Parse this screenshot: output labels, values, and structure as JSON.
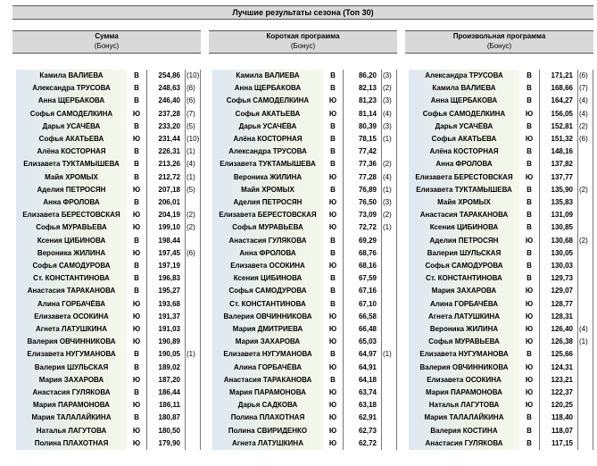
{
  "title": "Лучшие результаты сезона (Топ 30)",
  "tables": [
    {
      "header": "Сумма",
      "subheader": "(Бонус)",
      "rows": [
        [
          "Камила ВАЛИЕВА",
          "В",
          "254,86",
          "(10)"
        ],
        [
          "Александра ТРУСОВА",
          "В",
          "248,63",
          "(6)"
        ],
        [
          "Анна ЩЕРБАКОВА",
          "В",
          "246,40",
          "(6)"
        ],
        [
          "Софья САМОДЕЛКИНА",
          "Ю",
          "237,28",
          "(7)"
        ],
        [
          "Дарья УСАЧЁВА",
          "В",
          "233,20",
          "(5)"
        ],
        [
          "Софья АКАТЬЕВА",
          "Ю",
          "231,44",
          "(10)"
        ],
        [
          "Алёна КОСТОРНАЯ",
          "В",
          "226,31",
          "(1)"
        ],
        [
          "Елизавета ТУКТАМЫШЕВА",
          "В",
          "213,26",
          "(4)"
        ],
        [
          "Майя ХРОМЫХ",
          "В",
          "212,72",
          "(1)"
        ],
        [
          "Аделия ПЕТРОСЯН",
          "Ю",
          "207,18",
          "(5)"
        ],
        [
          "Анна ФРОЛОВА",
          "В",
          "206,01",
          null
        ],
        [
          "Елизавета БЕРЕСТОВСКАЯ",
          "Ю",
          "204,19",
          "(2)"
        ],
        [
          "Софья МУРАВЬЕВА",
          "Ю",
          "199,10",
          "(2)"
        ],
        [
          "Ксения ЦИБИНОВА",
          "В",
          "198,44",
          null
        ],
        [
          "Вероника ЖИЛИНА",
          "Ю",
          "197,45",
          "(6)"
        ],
        [
          "Софья САМОДУРОВА",
          "В",
          "197,19",
          null
        ],
        [
          "Ст. КОНСТАНТИНОВА",
          "В",
          "196,83",
          null
        ],
        [
          "Анастасия ТАРАКАНОВА",
          "В",
          "195,27",
          null
        ],
        [
          "Алина ГОРБАЧЁВА",
          "Ю",
          "193,68",
          null
        ],
        [
          "Елизавета ОСОКИНА",
          "Ю",
          "191,37",
          null
        ],
        [
          "Агнета ЛАТУШКИНА",
          "Ю",
          "191,03",
          null
        ],
        [
          "Валерия ОВЧИННИКОВА",
          "Ю",
          "190,89",
          null
        ],
        [
          "Елизавета НУГУМАНОВА",
          "В",
          "190,05",
          "(1)"
        ],
        [
          "Валерия ШУЛЬСКАЯ",
          "В",
          "189,02",
          null
        ],
        [
          "Мария ЗАХАРОВА",
          "Ю",
          "187,20",
          null
        ],
        [
          "Анастасия ГУЛЯКОВА",
          "В",
          "186,44",
          null
        ],
        [
          "Мария ПАРАМОНОВА",
          "Ю",
          "186,11",
          null
        ],
        [
          "Мария ТАЛАЛАЙКИНА",
          "В",
          "180,87",
          null
        ],
        [
          "Наталья ЛАГУТОВА",
          "Ю",
          "180,50",
          null
        ],
        [
          "Полина ПЛАХОТНАЯ",
          "Ю",
          "179,90",
          null
        ]
      ]
    },
    {
      "header": "Короткая программа",
      "subheader": "(Бонус)",
      "rows": [
        [
          "Камила ВАЛИЕВА",
          "В",
          "86,20",
          "(3)"
        ],
        [
          "Анна ЩЕРБАКОВА",
          "В",
          "82,13",
          "(2)"
        ],
        [
          "Софья САМОДЕЛКИНА",
          "Ю",
          "81,23",
          "(3)"
        ],
        [
          "Софья АКАТЬЕВА",
          "Ю",
          "81,14",
          "(4)"
        ],
        [
          "Дарья УСАЧЁВА",
          "В",
          "80,39",
          "(3)"
        ],
        [
          "Алёна КОСТОРНАЯ",
          "В",
          "78,15",
          "(1)"
        ],
        [
          "Александра ТРУСОВА",
          "В",
          "77,42",
          null
        ],
        [
          "Елизавета ТУКТАМЫШЕВА",
          "В",
          "77,36",
          "(2)"
        ],
        [
          "Вероника ЖИЛИНА",
          "Ю",
          "77,28",
          "(4)"
        ],
        [
          "Майя ХРОМЫХ",
          "В",
          "76,89",
          "(1)"
        ],
        [
          "Аделия ПЕТРОСЯН",
          "Ю",
          "76,50",
          "(3)"
        ],
        [
          "Елизавета БЕРЕСТОВСКАЯ",
          "Ю",
          "73,09",
          "(2)"
        ],
        [
          "Софья МУРАВЬЕВА",
          "Ю",
          "72,72",
          "(1)"
        ],
        [
          "Анастасия ГУЛЯКОВА",
          "В",
          "69,29",
          null
        ],
        [
          "Анна ФРОЛОВА",
          "В",
          "68,76",
          null
        ],
        [
          "Елизавета ОСОКИНА",
          "Ю",
          "68,16",
          null
        ],
        [
          "Ксения ЦИБИНОВА",
          "В",
          "67,59",
          null
        ],
        [
          "Софья САМОДУРОВА",
          "В",
          "67,16",
          null
        ],
        [
          "Ст. КОНСТАНТИНОВА",
          "В",
          "67,10",
          null
        ],
        [
          "Валерия ОВЧИННИКОВА",
          "Ю",
          "66,58",
          null
        ],
        [
          "Мария ДМИТРИЕВА",
          "Ю",
          "66,48",
          null
        ],
        [
          "Мария ЗАХАРОВА",
          "Ю",
          "65,03",
          null
        ],
        [
          "Елизавета НУГУМАНОВА",
          "В",
          "64,97",
          "(1)"
        ],
        [
          "Алина ГОРБАЧЁВА",
          "Ю",
          "64,91",
          null
        ],
        [
          "Анастасия ТАРАКАНОВА",
          "В",
          "64,18",
          null
        ],
        [
          "Мария ПАРАМОНОВА",
          "Ю",
          "63,74",
          null
        ],
        [
          "Дарья САДКОВА",
          "Ю",
          "63,18",
          null
        ],
        [
          "Полина ПЛАХОТНАЯ",
          "Ю",
          "62,91",
          null
        ],
        [
          "Полина СВИРИДЕНКО",
          "Ю",
          "62,73",
          null
        ],
        [
          "Агнета ЛАТУШКИНА",
          "Ю",
          "62,72",
          null
        ]
      ]
    },
    {
      "header": "Произвольная программа",
      "subheader": "(Бонус)",
      "rows": [
        [
          "Александра ТРУСОВА",
          "В",
          "171,21",
          "(6)"
        ],
        [
          "Камила ВАЛИЕВА",
          "В",
          "168,66",
          "(7)"
        ],
        [
          "Анна ЩЕРБАКОВА",
          "В",
          "164,27",
          "(4)"
        ],
        [
          "Софья САМОДЕЛКИНА",
          "Ю",
          "156,05",
          "(4)"
        ],
        [
          "Дарья УСАЧЁВА",
          "В",
          "152,81",
          "(2)"
        ],
        [
          "Софья АКАТЬЕВА",
          "Ю",
          "151,32",
          "(6)"
        ],
        [
          "Алёна КОСТОРНАЯ",
          "В",
          "148,16",
          null
        ],
        [
          "Анна ФРОЛОВА",
          "В",
          "137,82",
          null
        ],
        [
          "Елизавета БЕРЕСТОВСКАЯ",
          "Ю",
          "137,77",
          null
        ],
        [
          "Елизавета ТУКТАМЫШЕВА",
          "В",
          "135,90",
          "(2)"
        ],
        [
          "Майя ХРОМЫХ",
          "В",
          "135,83",
          null
        ],
        [
          "Анастасия ТАРАКАНОВА",
          "В",
          "131,09",
          null
        ],
        [
          "Ксения ЦИБИНОВА",
          "В",
          "130,85",
          null
        ],
        [
          "Аделия ПЕТРОСЯН",
          "Ю",
          "130,68",
          "(2)"
        ],
        [
          "Валерия ШУЛЬСКАЯ",
          "В",
          "130,05",
          null
        ],
        [
          "Софья САМОДУРОВА",
          "В",
          "130,03",
          null
        ],
        [
          "Ст. КОНСТАНТИНОВА",
          "В",
          "129,73",
          null
        ],
        [
          "Мария ЗАХАРОВА",
          "Ю",
          "129,07",
          null
        ],
        [
          "Алина ГОРБАЧЁВА",
          "Ю",
          "128,77",
          null
        ],
        [
          "Агнета ЛАТУШКИНА",
          "Ю",
          "128,31",
          null
        ],
        [
          "Вероника ЖИЛИНА",
          "Ю",
          "126,40",
          "(4)"
        ],
        [
          "Софья МУРАВЬЕВА",
          "Ю",
          "126,38",
          "(1)"
        ],
        [
          "Елизавета НУГУМАНОВА",
          "В",
          "125,66",
          null
        ],
        [
          "Валерия ОВЧИННИКОВА",
          "Ю",
          "124,31",
          null
        ],
        [
          "Елизавета ОСОКИНА",
          "Ю",
          "123,21",
          null
        ],
        [
          "Мария ПАРАМОНОВА",
          "Ю",
          "122,37",
          null
        ],
        [
          "Наталья ЛАГУТОВА",
          "Ю",
          "120,25",
          null
        ],
        [
          "Мария ТАЛАЛАЙКИНА",
          "В",
          "118,40",
          null
        ],
        [
          "Валерия КОСТИНА",
          "В",
          "118,07",
          null
        ],
        [
          "Анастасия ГУЛЯКОВА",
          "В",
          "117,15",
          null
        ]
      ]
    }
  ]
}
